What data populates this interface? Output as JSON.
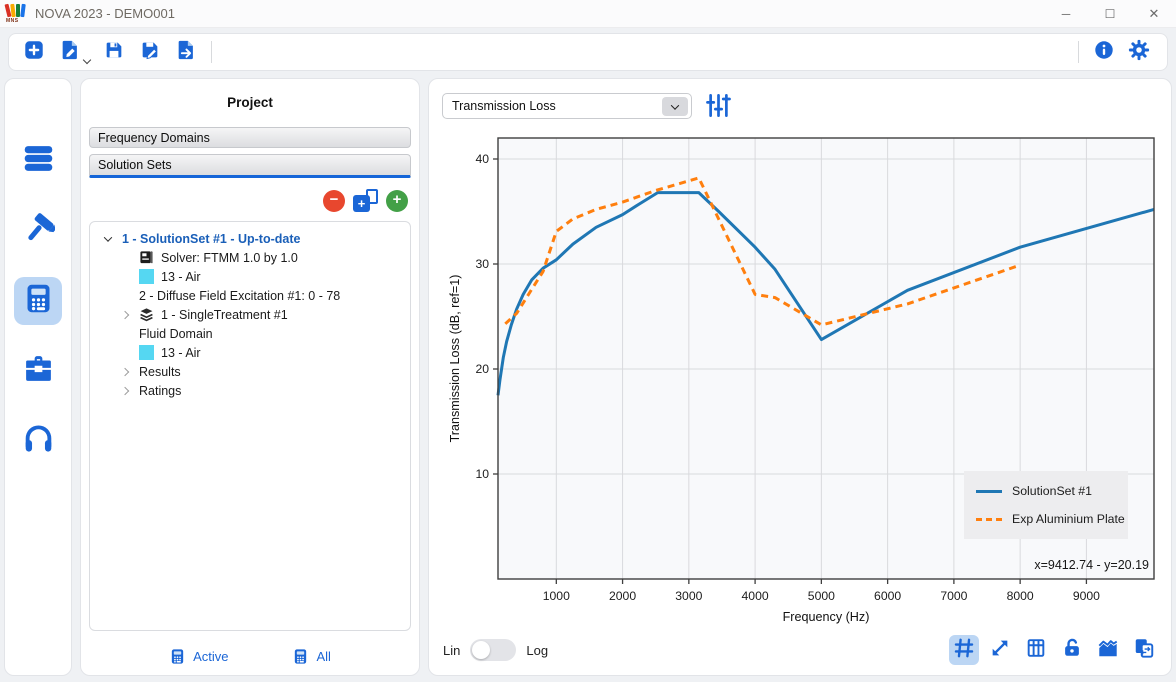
{
  "window": {
    "title": "NOVA 2023 - DEMO001",
    "logo_text": "MNS",
    "controls": {
      "minimize": "─",
      "maximize": "☐",
      "close": "✕"
    }
  },
  "colors": {
    "accent": "#1b66d6",
    "accent_light_bg": "#bcd6f4",
    "line_blue": "#1f77b4",
    "line_orange": "#ff7f0e",
    "swatch_cyan": "#55d7f2",
    "remove_red": "#e8472e",
    "add_green": "#43a047",
    "tree_active_text": "#1a5fb8",
    "plot_background": "#f8f9fb",
    "gridline": "#d9dadd"
  },
  "toolbar": {
    "buttons": [
      {
        "icon": "new-file",
        "name": "new-project"
      },
      {
        "icon": "open-file",
        "name": "open-project",
        "has_caret": true
      },
      {
        "icon": "save",
        "name": "save-project"
      },
      {
        "icon": "save-as",
        "name": "save-project-as"
      },
      {
        "icon": "export-file",
        "name": "export-project"
      }
    ],
    "right_buttons": [
      {
        "icon": "info",
        "name": "info"
      },
      {
        "icon": "gear",
        "name": "settings"
      }
    ]
  },
  "sidebar": {
    "items": [
      {
        "icon": "rows",
        "name": "data-manager",
        "selected": false
      },
      {
        "icon": "hammer",
        "name": "build-tools",
        "selected": false
      },
      {
        "icon": "calculator",
        "name": "solver",
        "selected": true
      },
      {
        "icon": "toolbox",
        "name": "toolbox",
        "selected": false
      },
      {
        "icon": "headphones",
        "name": "audio",
        "selected": false
      }
    ]
  },
  "project": {
    "title": "Project",
    "sections": [
      {
        "label": "Frequency Domains",
        "active": false
      },
      {
        "label": "Solution Sets",
        "active": true
      }
    ],
    "tree_actions": {
      "remove": "−",
      "duplicate": "+",
      "add": "+"
    },
    "tree": [
      {
        "chevron": "down",
        "icon": null,
        "label": "1 - SolutionSet #1 - Up-to-date",
        "active": true,
        "level": 0
      },
      {
        "chevron": null,
        "icon": "solver",
        "label": "Solver: FTMM 1.0 by 1.0",
        "active": false,
        "level": 1
      },
      {
        "chevron": null,
        "icon": "swatch",
        "label": "13 - Air",
        "active": false,
        "level": 1
      },
      {
        "chevron": null,
        "icon": null,
        "label": "2 - Diffuse Field Excitation #1: 0 - 78",
        "active": false,
        "level": 1
      },
      {
        "chevron": "right",
        "icon": "layers",
        "label": "1 - SingleTreatment #1",
        "active": false,
        "level": 1
      },
      {
        "chevron": null,
        "icon": null,
        "label": "Fluid Domain",
        "active": false,
        "level": 1
      },
      {
        "chevron": null,
        "icon": "swatch",
        "label": "13 - Air",
        "active": false,
        "level": 1
      },
      {
        "chevron": "right",
        "icon": null,
        "label": "Results",
        "active": false,
        "level": 1
      },
      {
        "chevron": "right",
        "icon": null,
        "label": "Ratings",
        "active": false,
        "level": 1
      }
    ],
    "footer": [
      {
        "icon": "calculator",
        "label": "Active"
      },
      {
        "icon": "calculator",
        "label": "All"
      }
    ]
  },
  "viewer": {
    "plot_selector": {
      "value": "Transmission Loss"
    },
    "filter_icon": "sliders",
    "cursor_readout": "x=9412.74 - y=20.19",
    "scale_toggle": {
      "options": [
        "Lin",
        "Log"
      ],
      "selected": "Lin"
    },
    "chart_toolbar": [
      {
        "icon": "grid",
        "name": "toggle-grid",
        "selected": true
      },
      {
        "icon": "fit",
        "name": "fit-view",
        "selected": false
      },
      {
        "icon": "table",
        "name": "data-table",
        "selected": false
      },
      {
        "icon": "unlock",
        "name": "lock-axes",
        "selected": false
      },
      {
        "icon": "curves",
        "name": "curve-manager",
        "selected": false
      },
      {
        "icon": "copy",
        "name": "copy-chart",
        "selected": false
      }
    ]
  },
  "chart_data": {
    "type": "line",
    "title": "",
    "xlabel": "Frequency (Hz)",
    "ylabel": "Transmission Loss (dB, ref=1)",
    "xlim": [
      120,
      10020
    ],
    "ylim": [
      0,
      42
    ],
    "xticks": [
      1000,
      2000,
      3000,
      4000,
      5000,
      6000,
      7000,
      8000,
      9000
    ],
    "yticks": [
      10,
      20,
      30,
      40
    ],
    "grid": true,
    "legend_position": "lower right",
    "series": [
      {
        "name": "SolutionSet #1",
        "color": "#1f77b4",
        "style": "solid",
        "points": [
          [
            120,
            17.5
          ],
          [
            150,
            19.0
          ],
          [
            200,
            21.1
          ],
          [
            250,
            22.6
          ],
          [
            320,
            24.2
          ],
          [
            400,
            25.7
          ],
          [
            500,
            27.1
          ],
          [
            630,
            28.5
          ],
          [
            800,
            29.6
          ],
          [
            1000,
            30.4
          ],
          [
            1250,
            31.9
          ],
          [
            1600,
            33.5
          ],
          [
            2000,
            34.7
          ],
          [
            2250,
            35.7
          ],
          [
            2530,
            36.8
          ],
          [
            3150,
            36.8
          ],
          [
            3450,
            35.0
          ],
          [
            4000,
            31.6
          ],
          [
            4300,
            29.5
          ],
          [
            5000,
            22.8
          ],
          [
            6300,
            27.5
          ],
          [
            8000,
            31.6
          ],
          [
            10020,
            35.2
          ]
        ]
      },
      {
        "name": "Exp Aluminium Plate",
        "color": "#ff7f0e",
        "style": "dashed",
        "points": [
          [
            230,
            24.3
          ],
          [
            315,
            24.8
          ],
          [
            400,
            25.3
          ],
          [
            500,
            26.3
          ],
          [
            630,
            27.6
          ],
          [
            800,
            29.3
          ],
          [
            1000,
            33.1
          ],
          [
            1250,
            34.3
          ],
          [
            1600,
            35.2
          ],
          [
            2000,
            35.9
          ],
          [
            2500,
            37.0
          ],
          [
            3150,
            38.2
          ],
          [
            4000,
            27.1
          ],
          [
            4300,
            26.8
          ],
          [
            5000,
            24.2
          ],
          [
            6300,
            26.2
          ],
          [
            8000,
            29.9
          ]
        ]
      }
    ]
  }
}
